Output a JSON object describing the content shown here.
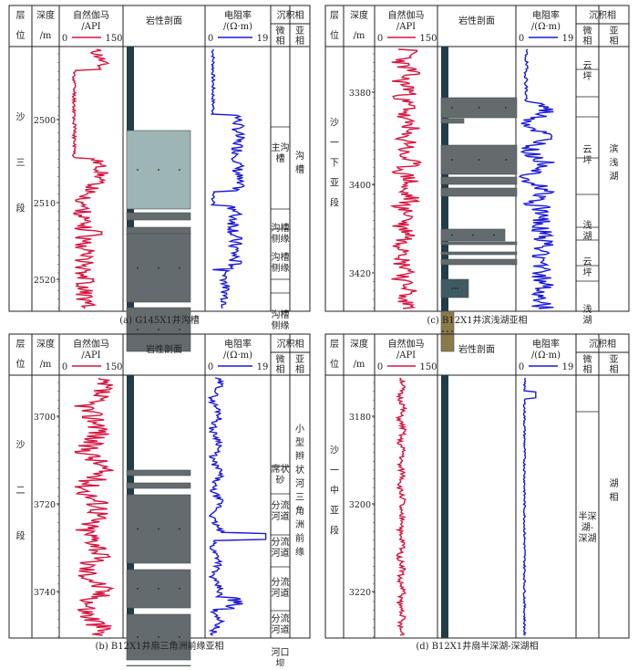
{
  "header_labels": {
    "layer_top": "层",
    "layer_bottom": "位",
    "depth_top": "深度",
    "depth_bottom": "/m",
    "gamma_top": "自然伽马",
    "gamma_bottom": "/API",
    "gamma_min": "0",
    "gamma_max": "150",
    "litho": "岩性剖面",
    "res_top": "电阻率",
    "res_bottom": "/(Ω·m)",
    "res_min": "0",
    "res_max": "19",
    "sed": "沉积相",
    "micro": "微相",
    "sub": "亚相"
  },
  "colors": {
    "gamma_curve": "#d6163f",
    "resistivity_curve": "#1a1adb",
    "shale": "#636b6e",
    "light_rock": "#9eb5b5",
    "core_column": "#1f3d4a",
    "gravel": "#8a7a4a"
  },
  "panels": [
    {
      "id": "a",
      "caption": "(a) G145X1井沟槽",
      "layer_name": [
        "沙",
        "三",
        "段"
      ],
      "depth_ticks": [
        2500,
        2510,
        2520
      ],
      "micro_facies": [
        "主沟槽",
        "沟槽侧缘",
        "沟槽侧缘",
        "沟槽侧缘"
      ],
      "sub_facies": "沟槽"
    },
    {
      "id": "c",
      "caption": "(c) B12X1井滨浅湖亚相",
      "layer_name": [
        "沙",
        "一",
        "下",
        "亚",
        "段"
      ],
      "depth_ticks": [
        3380,
        3400,
        3420
      ],
      "micro_facies": [
        "云坪",
        "云坪",
        "浅湖",
        "云坪",
        "浅湖"
      ],
      "sub_facies": "滨浅湖"
    },
    {
      "id": "b",
      "caption": "(b) B12X1井扇三角洲前缘亚相",
      "layer_name": [
        "沙",
        "二",
        "段"
      ],
      "depth_ticks": [
        3700,
        3720,
        3740
      ],
      "micro_facies": [
        "席状砂",
        "分流河道",
        "分流河道",
        "分流河道",
        "分流河道",
        "河口坝"
      ],
      "sub_facies": "小型辫状河三角洲前缘"
    },
    {
      "id": "d",
      "caption": "(d) B12X1井扇半深湖-深湖相",
      "layer_name": [
        "沙",
        "一",
        "中",
        "亚",
        "段"
      ],
      "depth_ticks": [
        3180,
        3200,
        3220
      ],
      "micro_facies": [
        "半深湖-深湖"
      ],
      "sub_facies": "湖相"
    }
  ]
}
